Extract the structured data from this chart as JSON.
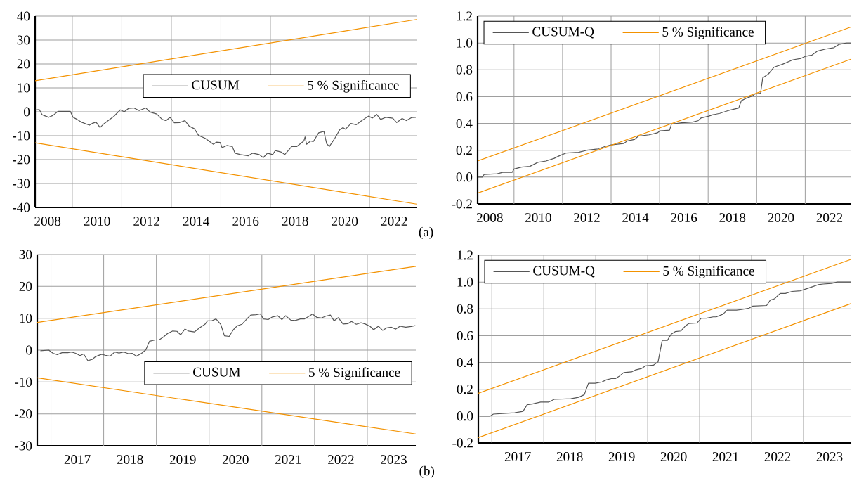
{
  "chart_data": [
    {
      "type": "line",
      "xlim": [
        2007.5,
        2022.9
      ],
      "ylim": [
        -40,
        40
      ],
      "grid": true,
      "legend": "right",
      "xticks": [
        {
          "value": 2008,
          "label": "2008"
        },
        {
          "value": 2009,
          "label": null
        },
        {
          "value": 2010,
          "label": "2010"
        },
        {
          "value": 2011,
          "label": null
        },
        {
          "value": 2012,
          "label": "2012"
        },
        {
          "value": 2013,
          "label": null
        },
        {
          "value": 2014,
          "label": "2014"
        },
        {
          "value": 2015,
          "label": null
        },
        {
          "value": 2016,
          "label": "2016"
        },
        {
          "value": 2017,
          "label": null
        },
        {
          "value": 2018,
          "label": "2018"
        },
        {
          "value": 2019,
          "label": null
        },
        {
          "value": 2020,
          "label": "2020"
        },
        {
          "value": 2021,
          "label": null
        },
        {
          "value": 2022,
          "label": "2022"
        }
      ],
      "yticks": [
        -40,
        -30,
        -20,
        -10,
        0,
        10,
        20,
        30,
        40
      ],
      "series": [
        {
          "name": "CUSUM",
          "color": "#555555",
          "x": [
            2007.51,
            2007.67,
            2007.78,
            2008.05,
            2008.22,
            2008.43,
            2008.71,
            2008.92,
            2009.03,
            2009.2,
            2009.36,
            2009.69,
            2009.8,
            2009.96,
            2010.12,
            2010.29,
            2010.45,
            2010.67,
            2010.94,
            2011.1,
            2011.27,
            2011.48,
            2011.7,
            2011.97,
            2012.14,
            2012.41,
            2012.63,
            2012.79,
            2012.95,
            2013.12,
            2013.34,
            2013.55,
            2013.72,
            2013.93,
            2014.1,
            2014.37,
            2014.7,
            2014.81,
            2014.97,
            2015.05,
            2015.24,
            2015.46,
            2015.57,
            2015.79,
            2016.11,
            2016.28,
            2016.55,
            2016.71,
            2016.88,
            2017.09,
            2017.2,
            2017.42,
            2017.58,
            2017.86,
            2018.07,
            2018.35,
            2018.4,
            2018.46,
            2018.62,
            2018.73,
            2018.95,
            2019.16,
            2019.27,
            2019.38,
            2019.6,
            2019.8,
            2019.93,
            2020.03,
            2020.25,
            2020.47,
            2020.69,
            2020.96,
            2021.12,
            2021.29,
            2021.45,
            2021.67,
            2021.94,
            2022.1,
            2022.32,
            2022.49,
            2022.7,
            2022.87
          ],
          "values": [
            0.8,
            0.9,
            -1.2,
            -2.3,
            -1.5,
            0.2,
            0.2,
            0.2,
            -2.3,
            -3.2,
            -4.3,
            -5.6,
            -4.9,
            -4.3,
            -6.6,
            -4.9,
            -3.7,
            -2.0,
            0.8,
            0,
            1.4,
            1.6,
            0.5,
            1.6,
            -0.1,
            -0.9,
            -3.2,
            -3.7,
            -2.3,
            -4.6,
            -4.5,
            -3.7,
            -6.0,
            -7.1,
            -9.9,
            -11.1,
            -13.6,
            -12.7,
            -12.8,
            -15.0,
            -14.1,
            -14.5,
            -17.3,
            -17.9,
            -18.4,
            -17.3,
            -17.9,
            -19.2,
            -17.3,
            -17.9,
            -16.2,
            -16.8,
            -17.9,
            -14.5,
            -14.5,
            -12.2,
            -10.5,
            -13.6,
            -12.2,
            -12.5,
            -8.8,
            -8.2,
            -13.3,
            -14.5,
            -11.1,
            -7.5,
            -6.6,
            -7.3,
            -4.9,
            -5.4,
            -3.7,
            -1.8,
            -2.6,
            -1.1,
            -3.2,
            -2.3,
            -2.7,
            -4.5,
            -2.8,
            -3.7,
            -2.4,
            -2.3
          ]
        },
        {
          "name": "5 % Significance",
          "color": "#f39200",
          "x": [
            2007.5,
            2022.9
          ],
          "values": [
            13,
            38.6
          ]
        },
        {
          "color": "#f39200",
          "x": [
            2007.5,
            2022.9
          ],
          "values": [
            -13,
            -38.6
          ]
        }
      ]
    },
    {
      "type": "line",
      "xlim": [
        2007.5,
        2022.9
      ],
      "ylim": [
        -0.2,
        1.2
      ],
      "grid": true,
      "legend": "top left",
      "annotations": [
        "(a)"
      ],
      "xticks": [
        {
          "value": 2008,
          "label": "2008"
        },
        {
          "value": 2009,
          "label": null
        },
        {
          "value": 2010,
          "label": "2010"
        },
        {
          "value": 2011,
          "label": null
        },
        {
          "value": 2012,
          "label": "2012"
        },
        {
          "value": 2013,
          "label": null
        },
        {
          "value": 2014,
          "label": "2014"
        },
        {
          "value": 2015,
          "label": null
        },
        {
          "value": 2016,
          "label": "2016"
        },
        {
          "value": 2017,
          "label": null
        },
        {
          "value": 2018,
          "label": "2018"
        },
        {
          "value": 2019,
          "label": null
        },
        {
          "value": 2020,
          "label": "2020"
        },
        {
          "value": 2021,
          "label": null
        },
        {
          "value": 2022,
          "label": "2022"
        }
      ],
      "yticks": [
        {
          "value": -0.2,
          "label": "-0.2"
        },
        {
          "value": 0,
          "label": "0.0"
        },
        {
          "value": 0.2,
          "label": "0.2"
        },
        {
          "value": 0.4,
          "label": "0.4"
        },
        {
          "value": 0.6,
          "label": "0.6"
        },
        {
          "value": 0.8,
          "label": "0.8"
        },
        {
          "value": 1.0,
          "label": "1.0"
        },
        {
          "value": 1.2,
          "label": "1.2"
        }
      ],
      "series": [
        {
          "name": "CUSUM-Q",
          "color": "#555555",
          "x": [
            2007.52,
            2007.69,
            2007.77,
            2008.31,
            2008.53,
            2008.92,
            2009.0,
            2009.31,
            2009.65,
            2009.98,
            2010.32,
            2010.66,
            2010.88,
            2011.16,
            2011.66,
            2012.0,
            2012.45,
            2012.78,
            2013.0,
            2013.51,
            2013.68,
            2013.96,
            2014.12,
            2014.57,
            2014.91,
            2015.02,
            2015.41,
            2015.49,
            2015.91,
            2016.36,
            2016.58,
            2016.7,
            2017.03,
            2017.2,
            2017.48,
            2017.81,
            2018.26,
            2018.37,
            2018.6,
            2018.82,
            2018.93,
            2019.16,
            2019.25,
            2019.49,
            2019.72,
            2020.05,
            2020.5,
            2020.83,
            2021.0,
            2021.28,
            2021.51,
            2021.84,
            2022.18,
            2022.4,
            2022.71,
            2022.9
          ],
          "values": [
            0.0,
            0.0,
            0.02,
            0.025,
            0.035,
            0.035,
            0.06,
            0.075,
            0.08,
            0.11,
            0.12,
            0.14,
            0.16,
            0.18,
            0.185,
            0.2,
            0.21,
            0.23,
            0.24,
            0.25,
            0.27,
            0.28,
            0.305,
            0.315,
            0.33,
            0.345,
            0.35,
            0.395,
            0.405,
            0.41,
            0.42,
            0.44,
            0.455,
            0.465,
            0.475,
            0.495,
            0.515,
            0.57,
            0.59,
            0.605,
            0.62,
            0.625,
            0.74,
            0.77,
            0.82,
            0.84,
            0.875,
            0.885,
            0.9,
            0.91,
            0.94,
            0.955,
            0.965,
            0.99,
            1.0,
            1.0
          ]
        },
        {
          "name": "5 % Significance",
          "color": "#f39200",
          "x": [
            2007.5,
            2022.9
          ],
          "values": [
            0.12,
            1.12
          ]
        },
        {
          "color": "#f39200",
          "x": [
            2007.5,
            2022.9
          ],
          "values": [
            -0.12,
            0.88
          ]
        }
      ]
    },
    {
      "type": "line",
      "xlim": [
        2016.74,
        2023.92
      ],
      "ylim": [
        -30,
        30
      ],
      "grid": true,
      "legend": "bottom right",
      "xticks": [
        {
          "value": 2017,
          "label": null
        },
        {
          "value": 2017.5,
          "label": "2017"
        },
        {
          "value": 2018,
          "label": null
        },
        {
          "value": 2018.5,
          "label": "2018"
        },
        {
          "value": 2019,
          "label": null
        },
        {
          "value": 2019.5,
          "label": "2019"
        },
        {
          "value": 2020,
          "label": null
        },
        {
          "value": 2020.5,
          "label": "2020"
        },
        {
          "value": 2021,
          "label": null
        },
        {
          "value": 2021.5,
          "label": "2021"
        },
        {
          "value": 2022,
          "label": null
        },
        {
          "value": 2022.5,
          "label": "2022"
        },
        {
          "value": 2023,
          "label": null
        },
        {
          "value": 2023.5,
          "label": "2023"
        }
      ],
      "yticks": [
        -30,
        -20,
        -10,
        0,
        10,
        20,
        30
      ],
      "series": [
        {
          "name": "CUSUM",
          "color": "#555555",
          "x": [
            2016.8,
            2016.96,
            2017.04,
            2017.12,
            2017.21,
            2017.32,
            2017.39,
            2017.47,
            2017.55,
            2017.62,
            2017.7,
            2017.78,
            2017.85,
            2017.96,
            2018.03,
            2018.12,
            2018.21,
            2018.29,
            2018.38,
            2018.47,
            2018.54,
            2018.62,
            2018.72,
            2018.8,
            2018.87,
            2018.98,
            2019.05,
            2019.13,
            2019.21,
            2019.31,
            2019.39,
            2019.46,
            2019.54,
            2019.61,
            2019.72,
            2019.82,
            2019.92,
            2019.97,
            2020.05,
            2020.13,
            2020.22,
            2020.29,
            2020.38,
            2020.46,
            2020.53,
            2020.62,
            2020.71,
            2020.79,
            2020.89,
            2020.97,
            2021.03,
            2021.12,
            2021.2,
            2021.3,
            2021.38,
            2021.45,
            2021.55,
            2021.63,
            2021.73,
            2021.81,
            2021.89,
            2021.96,
            2022.04,
            2022.13,
            2022.22,
            2022.3,
            2022.37,
            2022.45,
            2022.54,
            2022.63,
            2022.7,
            2022.79,
            2022.88,
            2022.96,
            2023.05,
            2023.12,
            2023.21,
            2023.29,
            2023.37,
            2023.45,
            2023.54,
            2023.62,
            2023.73,
            2023.83,
            2023.91
          ],
          "values": [
            -0.2,
            0,
            -1.0,
            -1.4,
            -0.8,
            -0.8,
            -0.6,
            -1.0,
            -1.7,
            -1.2,
            -3.3,
            -2.9,
            -2.0,
            -1.3,
            -1.6,
            -1.9,
            -0.6,
            -0.9,
            -0.6,
            -1.1,
            -1.0,
            -1.9,
            -1.0,
            0.1,
            2.8,
            3.2,
            3.2,
            4.1,
            5.2,
            6.0,
            5.9,
            4.8,
            6.6,
            6.0,
            5.7,
            7.0,
            8.1,
            9.2,
            9.2,
            9.8,
            8.1,
            4.5,
            4.3,
            6.4,
            7.6,
            8.1,
            9.7,
            11.0,
            11.1,
            11.4,
            9.8,
            9.6,
            10.4,
            10.8,
            9.6,
            10.8,
            9.4,
            9.3,
            9.8,
            9.8,
            10.6,
            11.3,
            10.3,
            10.1,
            10.7,
            11.0,
            9.2,
            10.2,
            8.2,
            8.3,
            9.0,
            8.1,
            8.6,
            8.2,
            7.5,
            6.4,
            7.5,
            6.2,
            7.0,
            7.2,
            6.6,
            7.5,
            7.2,
            7.4,
            7.7
          ]
        },
        {
          "name": "5 % Significance",
          "color": "#f39200",
          "x": [
            2016.74,
            2023.92
          ],
          "values": [
            8.7,
            26.3
          ]
        },
        {
          "color": "#f39200",
          "x": [
            2016.74,
            2023.92
          ],
          "values": [
            -8.7,
            -26.3
          ]
        }
      ]
    },
    {
      "type": "line",
      "xlim": [
        2016.74,
        2023.92
      ],
      "ylim": [
        -0.2,
        1.2
      ],
      "grid": true,
      "legend": "top left",
      "annotations": [
        "(b)"
      ],
      "xticks": [
        {
          "value": 2017,
          "label": null
        },
        {
          "value": 2017.5,
          "label": "2017"
        },
        {
          "value": 2018,
          "label": null
        },
        {
          "value": 2018.5,
          "label": "2018"
        },
        {
          "value": 2019,
          "label": null
        },
        {
          "value": 2019.5,
          "label": "2019"
        },
        {
          "value": 2020,
          "label": null
        },
        {
          "value": 2020.5,
          "label": "2020"
        },
        {
          "value": 2021,
          "label": null
        },
        {
          "value": 2021.5,
          "label": "2021"
        },
        {
          "value": 2022,
          "label": null
        },
        {
          "value": 2022.5,
          "label": "2022"
        },
        {
          "value": 2023,
          "label": null
        },
        {
          "value": 2023.5,
          "label": "2023"
        }
      ],
      "yticks": [
        {
          "value": -0.2,
          "label": "-0.2"
        },
        {
          "value": 0,
          "label": "0.0"
        },
        {
          "value": 0.2,
          "label": "0.2"
        },
        {
          "value": 0.4,
          "label": "0.4"
        },
        {
          "value": 0.6,
          "label": "0.6"
        },
        {
          "value": 0.8,
          "label": "0.8"
        },
        {
          "value": 1.0,
          "label": "1.0"
        },
        {
          "value": 1.2,
          "label": "1.2"
        }
      ],
      "series": [
        {
          "name": "CUSUM-Q",
          "color": "#555555",
          "x": [
            2016.76,
            2016.97,
            2017.03,
            2017.21,
            2017.44,
            2017.6,
            2017.68,
            2017.78,
            2017.94,
            2018.1,
            2018.2,
            2018.52,
            2018.67,
            2018.78,
            2018.86,
            2018.99,
            2019.12,
            2019.2,
            2019.3,
            2019.38,
            2019.46,
            2019.54,
            2019.69,
            2019.77,
            2019.88,
            2019.96,
            2020.11,
            2020.2,
            2020.28,
            2020.38,
            2020.45,
            2020.53,
            2020.64,
            2020.72,
            2020.79,
            2020.95,
            2021.03,
            2021.13,
            2021.26,
            2021.32,
            2021.45,
            2021.53,
            2021.71,
            2021.81,
            2021.95,
            2022.02,
            2022.29,
            2022.36,
            2022.44,
            2022.55,
            2022.65,
            2022.78,
            2022.94,
            2023.02,
            2023.17,
            2023.28,
            2023.38,
            2023.54,
            2023.65,
            2023.92
          ],
          "values": [
            0.0,
            0.0,
            0.015,
            0.02,
            0.025,
            0.035,
            0.085,
            0.09,
            0.105,
            0.105,
            0.125,
            0.13,
            0.14,
            0.16,
            0.245,
            0.245,
            0.255,
            0.27,
            0.28,
            0.28,
            0.3,
            0.325,
            0.33,
            0.345,
            0.355,
            0.375,
            0.38,
            0.405,
            0.565,
            0.565,
            0.61,
            0.63,
            0.635,
            0.67,
            0.69,
            0.695,
            0.73,
            0.73,
            0.74,
            0.74,
            0.76,
            0.79,
            0.79,
            0.795,
            0.805,
            0.82,
            0.825,
            0.865,
            0.875,
            0.915,
            0.915,
            0.93,
            0.935,
            0.945,
            0.965,
            0.98,
            0.985,
            0.99,
            1.0,
            1.0
          ]
        },
        {
          "name": "5 % Significance",
          "color": "#f39200",
          "x": [
            2016.74,
            2023.92
          ],
          "values": [
            0.17,
            1.17
          ]
        },
        {
          "color": "#f39200",
          "x": [
            2016.74,
            2023.92
          ],
          "values": [
            -0.16,
            0.84
          ]
        }
      ]
    }
  ]
}
